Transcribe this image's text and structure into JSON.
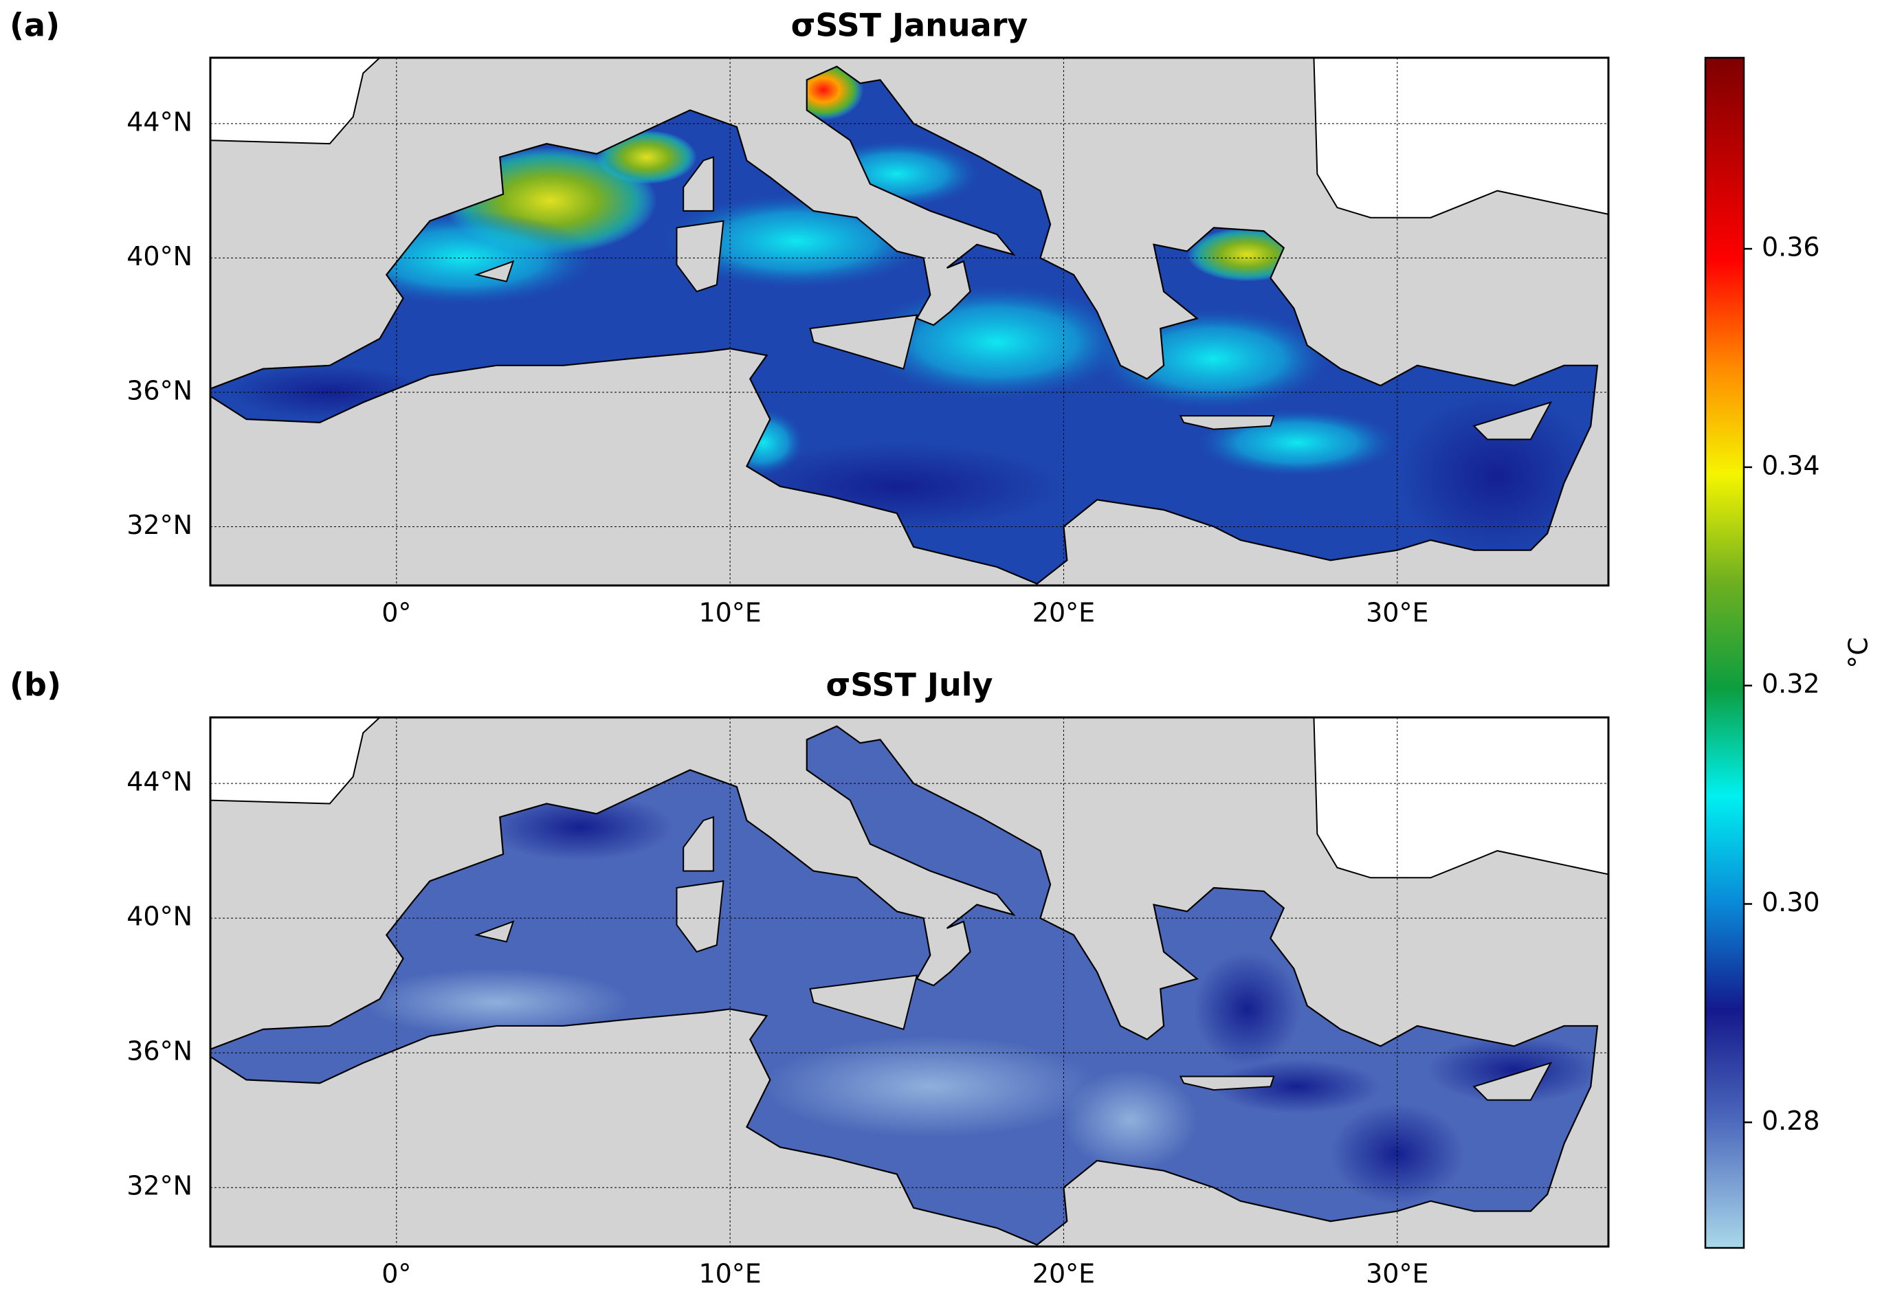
{
  "panels": [
    {
      "label": "(a)",
      "title": "σSST January",
      "xlim": [
        -5.58,
        36.33
      ],
      "ylim": [
        30.25,
        45.96
      ],
      "xticks": [
        {
          "value": 0,
          "label": "0°"
        },
        {
          "value": 10,
          "label": "10°E"
        },
        {
          "value": 20,
          "label": "20°E"
        },
        {
          "value": 30,
          "label": "30°E"
        }
      ],
      "yticks": [
        {
          "value": 32,
          "label": "32°N"
        },
        {
          "value": 36,
          "label": "36°N"
        },
        {
          "value": 40,
          "label": "40°N"
        },
        {
          "value": 44,
          "label": "44°N"
        }
      ]
    },
    {
      "label": "(b)",
      "title": "σSST July",
      "xlim": [
        -5.58,
        36.33
      ],
      "ylim": [
        30.25,
        45.96
      ],
      "xticks": [
        {
          "value": 0,
          "label": "0°"
        },
        {
          "value": 10,
          "label": "10°E"
        },
        {
          "value": 20,
          "label": "20°E"
        },
        {
          "value": 30,
          "label": "30°E"
        }
      ],
      "yticks": [
        {
          "value": 32,
          "label": "32°N"
        },
        {
          "value": 36,
          "label": "36°N"
        },
        {
          "value": 40,
          "label": "40°N"
        },
        {
          "value": 44,
          "label": "44°N"
        }
      ]
    }
  ],
  "colorbar": {
    "label": "°C",
    "lim": [
      0.2685,
      0.3775
    ],
    "ticks": [
      0.28,
      {
        "value": 0.3,
        "label": "0.30"
      },
      0.32,
      0.34,
      0.36
    ]
  }
}
